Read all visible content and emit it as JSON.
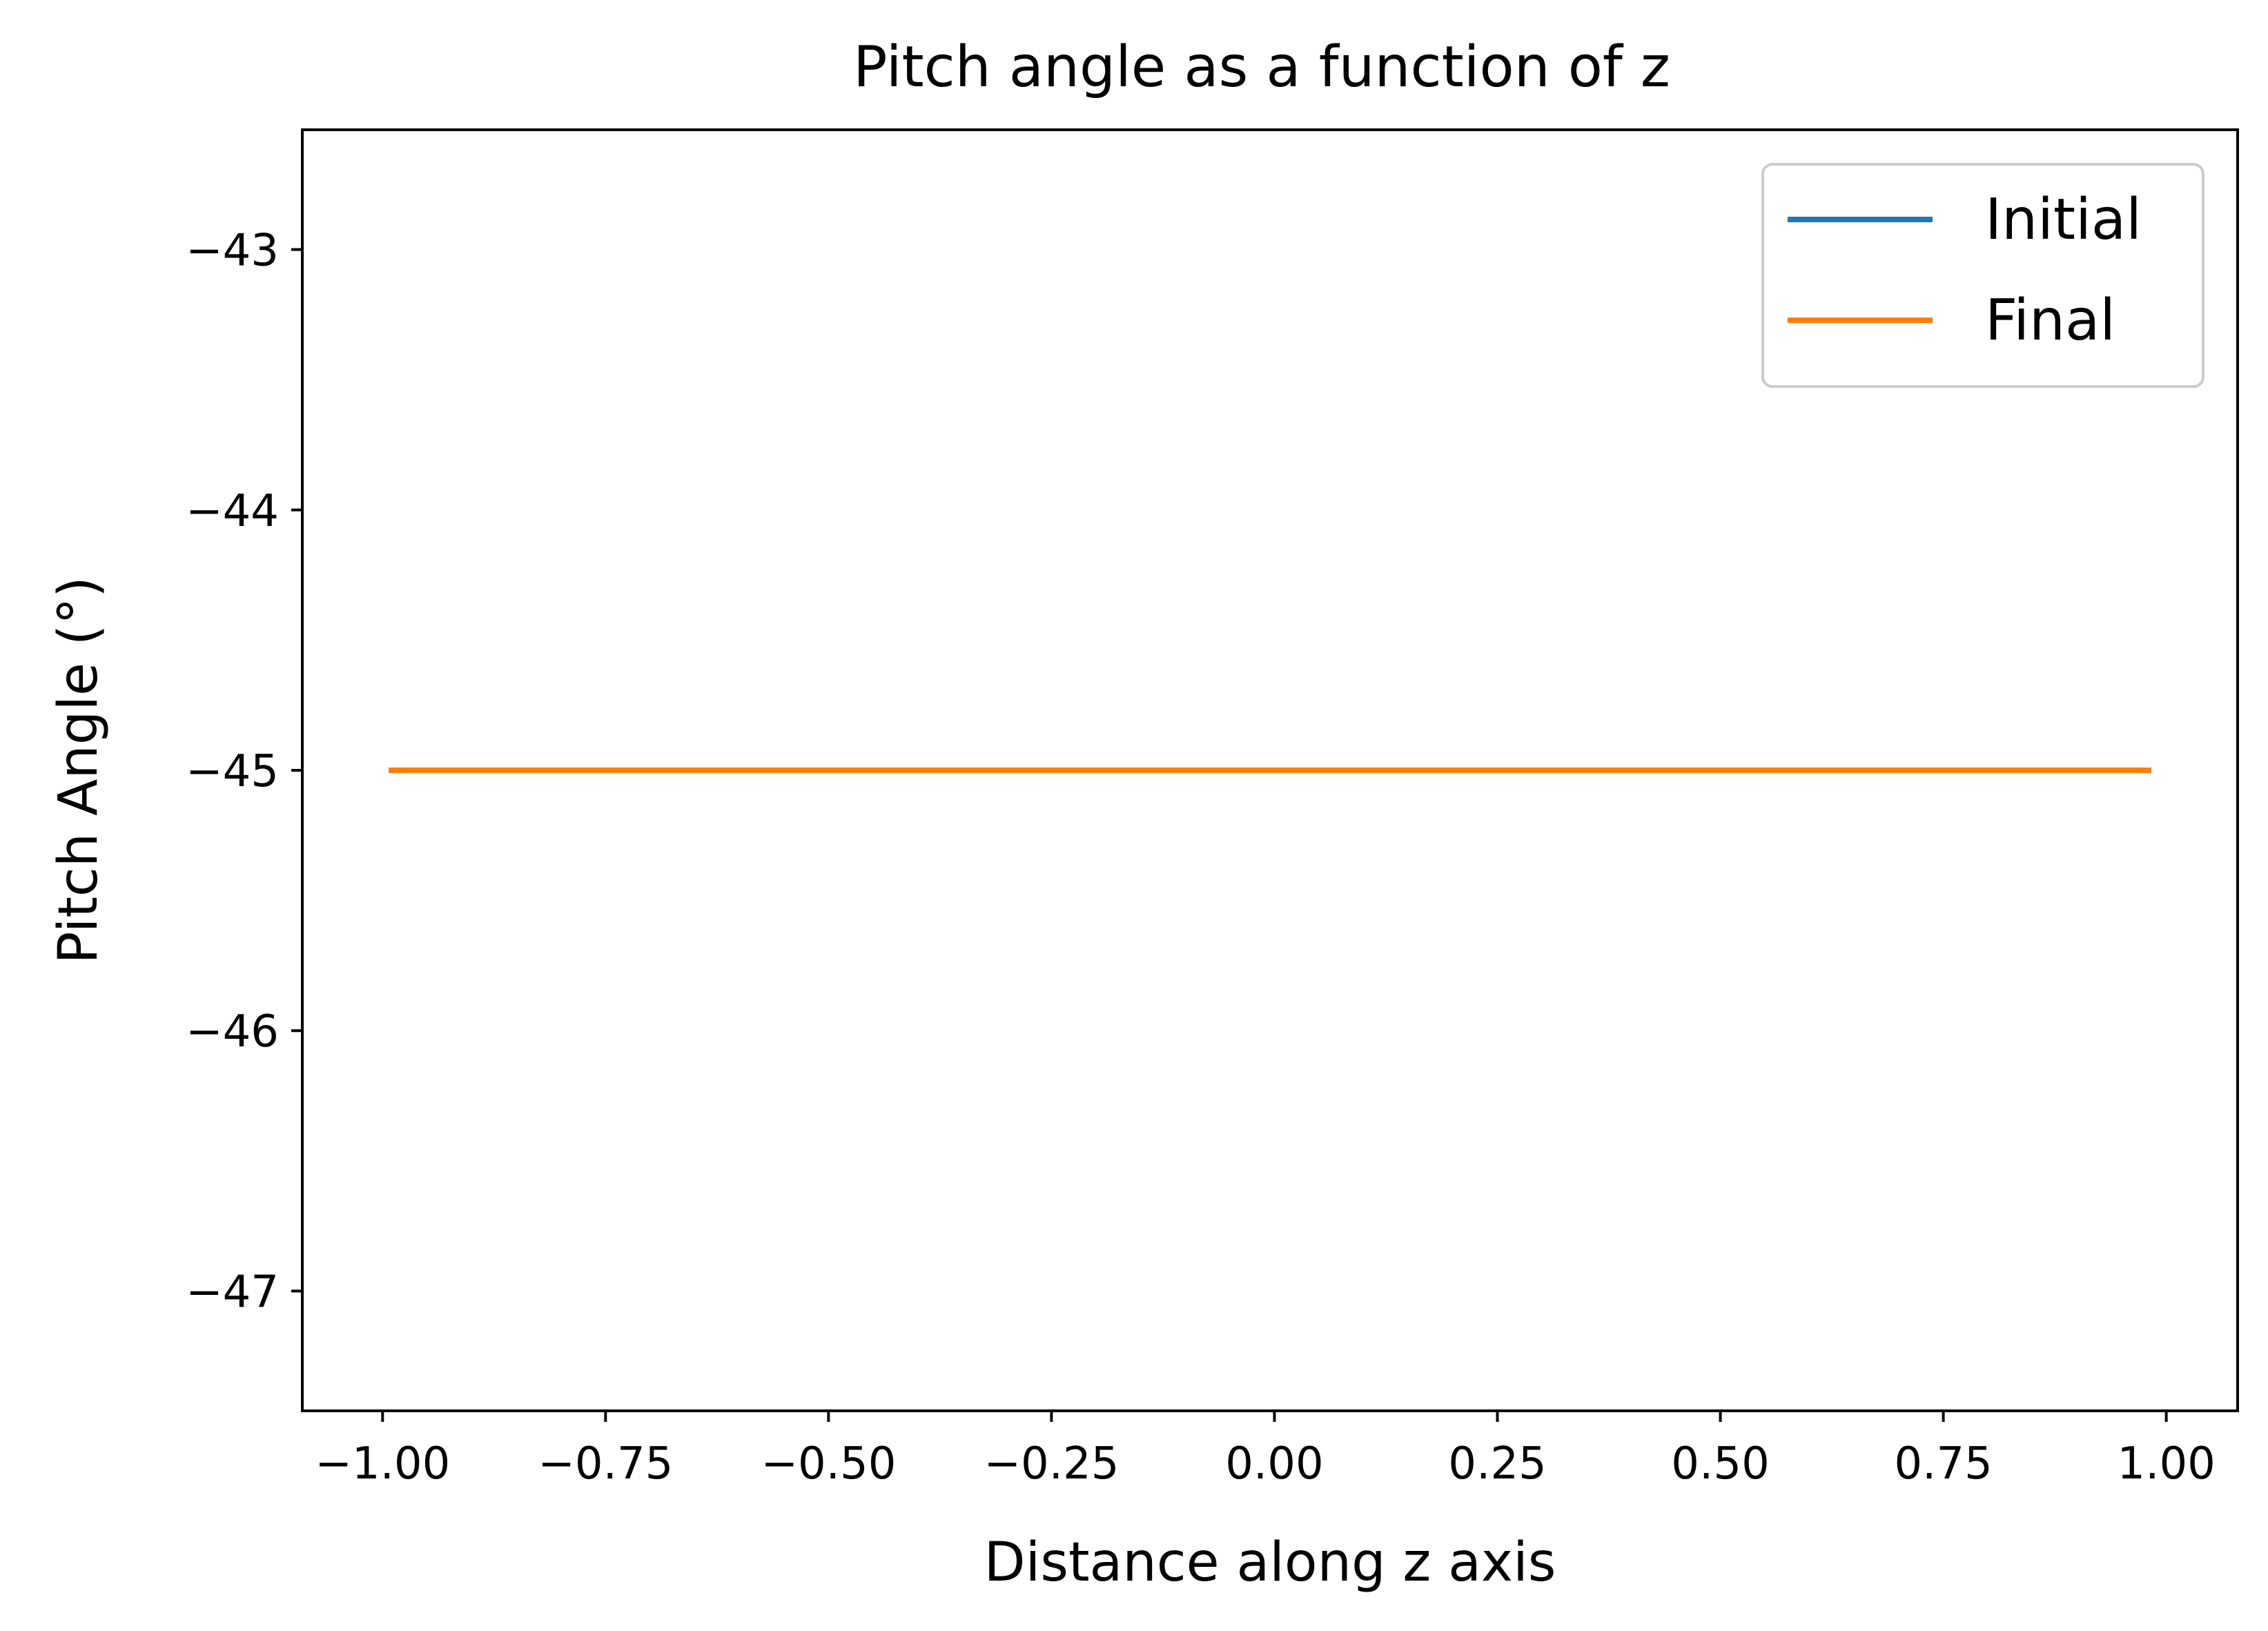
{
  "chart_data": {
    "type": "line",
    "title": "Pitch angle as a function of z",
    "xlabel": "Distance along z axis",
    "ylabel": "Pitch Angle (°)",
    "xlim": [
      -1.09,
      1.08
    ],
    "ylim": [
      -47.46,
      -42.54
    ],
    "xticks": [
      -1.0,
      -0.75,
      -0.5,
      -0.25,
      0.0,
      0.25,
      0.5,
      0.75,
      1.0
    ],
    "xtick_labels": [
      "−1.00",
      "−0.75",
      "−0.50",
      "−0.25",
      "0.00",
      "0.25",
      "0.50",
      "0.75",
      "1.00"
    ],
    "yticks": [
      -43,
      -44,
      -45,
      -46,
      -47
    ],
    "ytick_labels": [
      "−43",
      "−44",
      "−45",
      "−46",
      "−47"
    ],
    "legend_position": "top-right",
    "grid": false,
    "series": [
      {
        "name": "Initial",
        "color": "#1f77b4",
        "x": [
          -0.99,
          0.98
        ],
        "y": [
          -45,
          -45
        ]
      },
      {
        "name": "Final",
        "color": "#ff7f0e",
        "x": [
          -0.99,
          0.98
        ],
        "y": [
          -45,
          -45
        ]
      }
    ]
  }
}
